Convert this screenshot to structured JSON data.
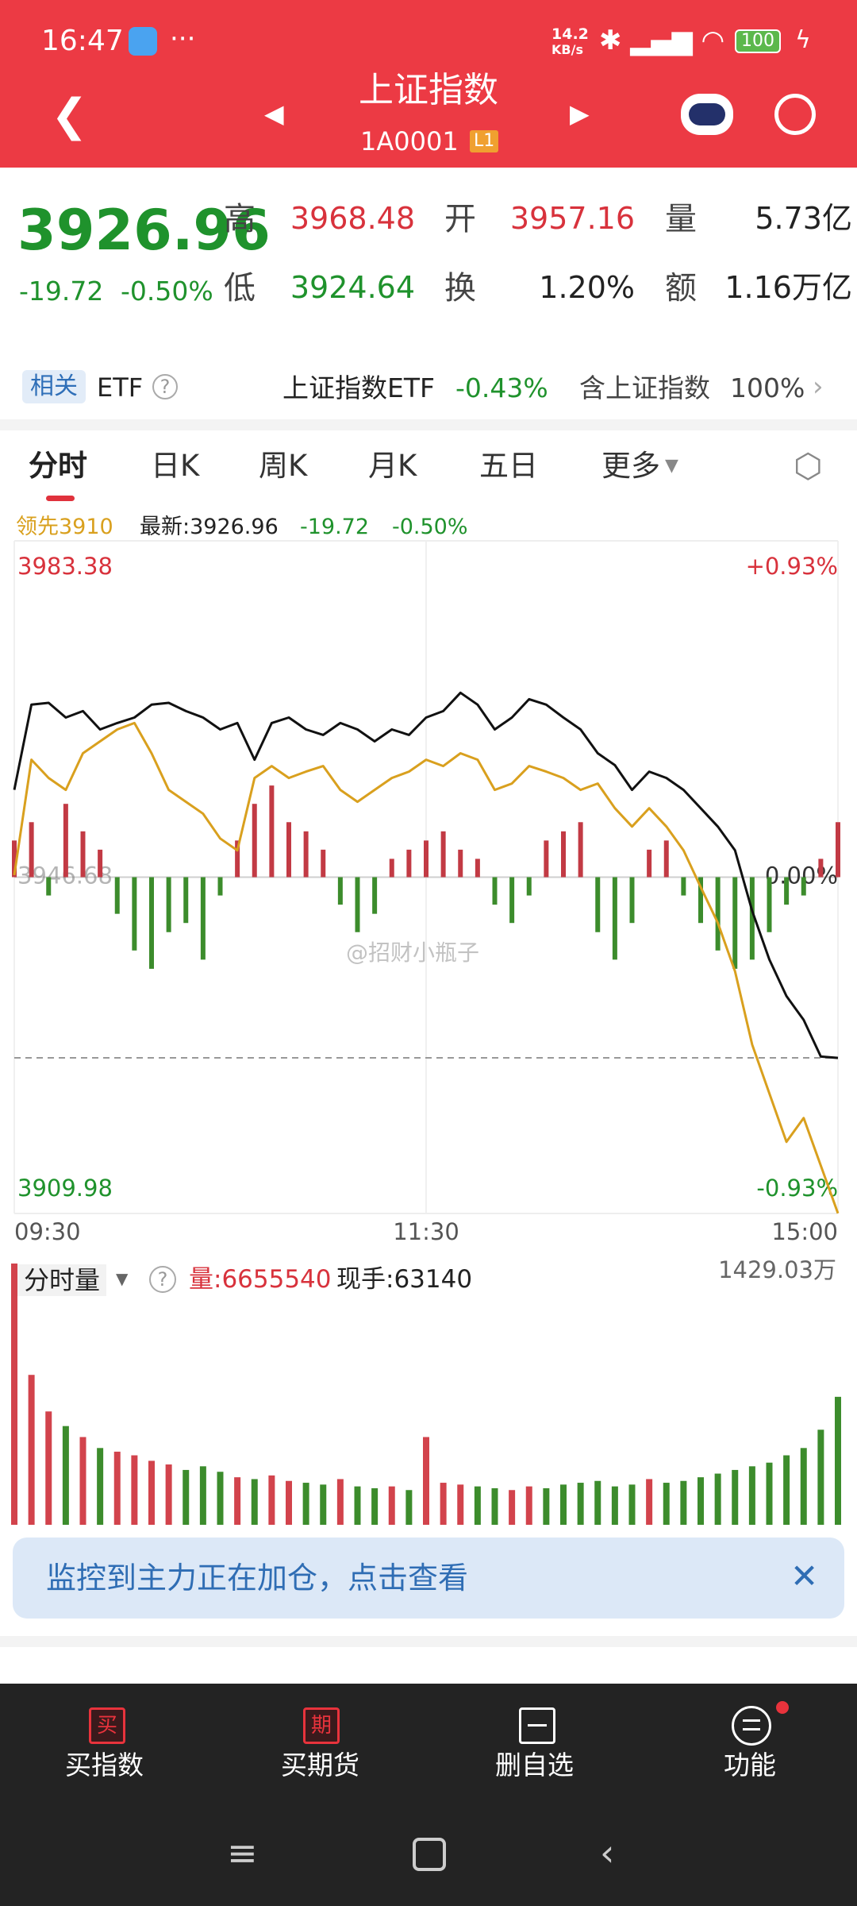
{
  "status_bar": {
    "time": "16:47",
    "net_speed": "14.2",
    "net_unit": "KB/s",
    "battery": "100"
  },
  "header": {
    "title": "上证指数",
    "code": "1A0001",
    "level": "L1"
  },
  "quote": {
    "price": "3926.96",
    "change": "-19.72",
    "change_pct": "-0.50%",
    "stats": [
      {
        "label": "高",
        "value": "3968.48"
      },
      {
        "label": "开",
        "value": "3957.16"
      },
      {
        "label": "量",
        "value": "5.73亿"
      },
      {
        "label": "低",
        "value": "3924.64"
      },
      {
        "label": "换",
        "value": "1.20%"
      },
      {
        "label": "额",
        "value": "1.16万亿"
      }
    ]
  },
  "etf": {
    "tag": "相关",
    "label": "ETF",
    "name": "上证指数ETF",
    "change": "-0.43%",
    "holding_label": "含上证指数",
    "holding": "100%"
  },
  "tabs": [
    "分时",
    "日K",
    "周K",
    "月K",
    "五日",
    "更多"
  ],
  "legend": {
    "lead": "领先3910",
    "latest": "最新:3926.96",
    "change": "-19.72",
    "change_pct": "-0.50%"
  },
  "watermark": "@招财小瓶子",
  "chart_data": {
    "type": "line",
    "grid": true,
    "x": [
      0,
      5,
      10,
      15,
      20,
      25,
      30,
      35,
      40,
      45,
      50,
      55,
      60,
      65,
      70,
      75,
      80,
      85,
      90,
      95,
      100,
      105,
      110,
      115,
      120,
      125,
      130,
      135,
      140,
      145,
      150,
      155,
      160,
      165,
      170,
      175,
      180,
      185,
      190,
      195,
      200,
      205,
      210,
      215,
      220,
      225,
      230,
      235,
      240
    ],
    "xlim": [
      0,
      240
    ],
    "xticks": [
      {
        "value": 0,
        "label": "09:30"
      },
      {
        "value": 120,
        "label": "11:30"
      },
      {
        "value": 240,
        "label": "15:00"
      }
    ],
    "ylim": [
      3909.98,
      3983.38
    ],
    "yticks": [
      3909.98,
      3946.68,
      3983.38
    ],
    "y2lim": [
      -0.93,
      0.93
    ],
    "y2ticks": [
      {
        "value": -0.93,
        "label": "-0.93%"
      },
      {
        "value": 0,
        "label": "0.00%"
      },
      {
        "value": 0.93,
        "label": "+0.93%"
      }
    ],
    "last_price": 3926.96,
    "series": [
      {
        "color": "#111111",
        "values": [
          3956.2,
          3965.5,
          3965.7,
          3964.1,
          3964.8,
          3962.8,
          3963.5,
          3964.1,
          3965.5,
          3965.7,
          3964.8,
          3964.1,
          3962.8,
          3963.5,
          3959.5,
          3963.5,
          3964.1,
          3962.8,
          3962.2,
          3963.5,
          3962.8,
          3961.5,
          3962.8,
          3962.2,
          3964.1,
          3964.8,
          3966.8,
          3965.5,
          3962.8,
          3964.1,
          3966.1,
          3965.5,
          3964.1,
          3962.8,
          3960.2,
          3958.9,
          3956.2,
          3958.2,
          3957.5,
          3956.2,
          3954.2,
          3952.2,
          3949.6,
          3943.0,
          3937.7,
          3933.7,
          3931.1,
          3927.1,
          3926.96
        ]
      },
      {
        "color": "#d9a01e",
        "values": [
          3946.9,
          3959.5,
          3957.5,
          3956.2,
          3960.2,
          3961.5,
          3962.8,
          3963.5,
          3960.2,
          3956.2,
          3954.9,
          3953.6,
          3950.9,
          3949.6,
          3957.5,
          3958.8,
          3957.5,
          3958.2,
          3958.8,
          3956.2,
          3954.9,
          3956.2,
          3957.5,
          3958.2,
          3959.5,
          3958.8,
          3960.2,
          3959.5,
          3956.2,
          3956.9,
          3958.8,
          3958.2,
          3957.5,
          3956.2,
          3956.9,
          3954.2,
          3952.2,
          3954.2,
          3952.2,
          3949.6,
          3945.6,
          3941.7,
          3936.4,
          3928.4,
          3923.1,
          3917.8,
          3920.4,
          3915.2,
          3910
        ]
      }
    ],
    "bars": {
      "up_color": "#c23a44",
      "down_color": "#3c8c2c",
      "ylim": [
        -36.7,
        36.7
      ],
      "values": [
        4,
        6,
        -2,
        8,
        5,
        3,
        -4,
        -8,
        -10,
        -6,
        -5,
        -9,
        -2,
        4,
        8,
        10,
        6,
        5,
        3,
        -3,
        -6,
        -4,
        2,
        3,
        4,
        5,
        3,
        2,
        -3,
        -5,
        -2,
        4,
        5,
        6,
        -6,
        -9,
        -5,
        3,
        4,
        -2,
        -5,
        -8,
        -10,
        -9,
        -6,
        -3,
        -2,
        2,
        6
      ]
    },
    "volume": {
      "title": "分时量",
      "current": "量:6655540",
      "hand": "现手:63140",
      "up_color": "#d2434c",
      "down_color": "#3c8c2c",
      "ylim": [
        0,
        1429.03
      ],
      "yticks": [
        {
          "value": 1429.03,
          "label": "1429.03万"
        }
      ],
      "values": [
        1429.03,
        820,
        620,
        540,
        480,
        420,
        400,
        380,
        350,
        330,
        300,
        320,
        290,
        260,
        250,
        270,
        240,
        230,
        220,
        250,
        210,
        200,
        210,
        190,
        480,
        230,
        220,
        210,
        200,
        190,
        210,
        200,
        220,
        230,
        240,
        210,
        220,
        250,
        230,
        240,
        260,
        280,
        300,
        320,
        340,
        380,
        420,
        520,
        700
      ]
    }
  },
  "banner": "监控到主力正在加仓，点击查看",
  "bottom_nav": [
    {
      "icon": "买",
      "label": "买指数"
    },
    {
      "icon": "期",
      "label": "买期货"
    },
    {
      "label": "删自选"
    },
    {
      "label": "功能"
    }
  ]
}
